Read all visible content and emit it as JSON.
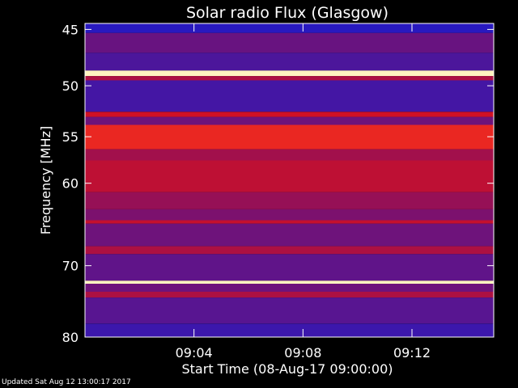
{
  "chart_data": {
    "type": "heatmap",
    "title": "Solar radio Flux (Glasgow)",
    "ylabel": "Frequency [MHz]",
    "xlabel": "Start Time (08-Aug-17 09:00:00)",
    "y_ticks": [
      45,
      50,
      55,
      60,
      70,
      80
    ],
    "x_ticks": [
      "09:04",
      "09:08",
      "09:12"
    ],
    "x_tick_minutes": [
      4,
      8,
      12
    ],
    "xlim_minutes": [
      0,
      15
    ],
    "ylim_mhz": [
      44.5,
      80
    ],
    "y_scale": "log",
    "colors": {
      "background": "#000000",
      "low": "#1a1acc",
      "mid": "#8a1060",
      "high": "#e81010",
      "peak": "#fff4c0"
    },
    "bands": [
      {
        "from": 44.5,
        "to": 45.3,
        "level": 0.05
      },
      {
        "from": 45.3,
        "to": 47.0,
        "level": 0.28
      },
      {
        "from": 47.0,
        "to": 48.6,
        "level": 0.18
      },
      {
        "from": 48.6,
        "to": 49.1,
        "level": 1.0
      },
      {
        "from": 49.1,
        "to": 49.5,
        "level": 0.55
      },
      {
        "from": 49.5,
        "to": 52.5,
        "level": 0.15
      },
      {
        "from": 52.5,
        "to": 53.0,
        "level": 0.7
      },
      {
        "from": 53.0,
        "to": 53.8,
        "level": 0.3
      },
      {
        "from": 53.8,
        "to": 56.3,
        "level": 0.82
      },
      {
        "from": 56.3,
        "to": 57.5,
        "level": 0.5
      },
      {
        "from": 57.5,
        "to": 61.0,
        "level": 0.62
      },
      {
        "from": 61.0,
        "to": 63.0,
        "level": 0.45
      },
      {
        "from": 63.0,
        "to": 64.3,
        "level": 0.35
      },
      {
        "from": 64.3,
        "to": 64.7,
        "level": 0.65
      },
      {
        "from": 64.7,
        "to": 67.5,
        "level": 0.3
      },
      {
        "from": 67.5,
        "to": 68.5,
        "level": 0.55
      },
      {
        "from": 68.5,
        "to": 72.0,
        "level": 0.25
      },
      {
        "from": 72.0,
        "to": 72.4,
        "level": 1.0
      },
      {
        "from": 72.4,
        "to": 73.5,
        "level": 0.3
      },
      {
        "from": 73.5,
        "to": 74.3,
        "level": 0.55
      },
      {
        "from": 74.3,
        "to": 78.0,
        "level": 0.22
      },
      {
        "from": 78.0,
        "to": 80.0,
        "level": 0.12
      }
    ]
  },
  "footer": {
    "updated": "Updated Sat Aug 12 13:00:17 2017"
  }
}
